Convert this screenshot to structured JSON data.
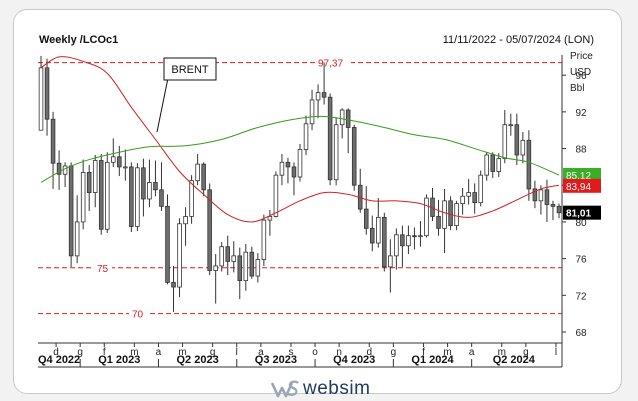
{
  "header": {
    "symbol": "Weekly /LCOc1",
    "date_range": "11/11/2022 - 05/07/2024 (LON)"
  },
  "logo": {
    "text": "websim",
    "icon": "websim-logo-icon"
  },
  "colors": {
    "candle_up": "#ffffff",
    "candle_down": "#6e6e6e",
    "candle_outline": "#333333",
    "ma_red": "#d42020",
    "ma_green": "#3a9a20",
    "level_line": "#d42020",
    "tag_green": "#3aae27",
    "tag_red": "#e01b1b",
    "tag_black": "#000000"
  },
  "chart_data": {
    "type": "candlestick",
    "title": "Weekly /LCOc1",
    "annotation": "BRENT",
    "y_axis": {
      "label_lines": [
        "Price",
        "USD",
        "Bbl"
      ],
      "ticks": [
        68,
        72,
        76,
        80,
        84,
        88,
        92,
        96
      ],
      "range": [
        66.8,
        98.2
      ]
    },
    "x_axis": {
      "month_labels": [
        "d",
        "g",
        "f",
        "m",
        "a",
        "m",
        "g",
        "l",
        "a",
        "s",
        "o",
        "n",
        "d",
        "g",
        "f",
        "m",
        "a",
        "m",
        "g",
        "l"
      ],
      "quarter_labels": [
        "Q4 2022",
        "Q1 2023",
        "Q2 2023",
        "Q3 2023",
        "Q4 2023",
        "Q1 2024",
        "Q2 2024"
      ],
      "weeks": 87
    },
    "levels": [
      {
        "value": 97.37,
        "label": "97,37"
      },
      {
        "value": 75,
        "label": "75"
      },
      {
        "value": 70,
        "label": "70"
      }
    ],
    "price_tags": [
      {
        "value": 85.12,
        "label": "85,12",
        "color": "green"
      },
      {
        "value": 83.94,
        "label": "83,94",
        "color": "red"
      },
      {
        "value": 81.01,
        "label": "81,01",
        "color": "black"
      }
    ],
    "moving_averages": [
      {
        "color": "red",
        "points": [
          [
            0,
            96.8
          ],
          [
            3,
            98.0
          ],
          [
            7,
            97.5
          ],
          [
            11,
            96.2
          ],
          [
            15,
            92.5
          ],
          [
            19,
            89.0
          ],
          [
            23,
            85.5
          ],
          [
            27,
            83.0
          ],
          [
            31,
            80.8
          ],
          [
            35,
            80.0
          ],
          [
            39,
            81.0
          ],
          [
            43,
            82.3
          ],
          [
            47,
            83.2
          ],
          [
            51,
            83.0
          ],
          [
            55,
            82.3
          ],
          [
            59,
            82.3
          ],
          [
            63,
            82.0
          ],
          [
            67,
            81.0
          ],
          [
            71,
            80.5
          ],
          [
            75,
            81.2
          ],
          [
            79,
            82.4
          ],
          [
            83,
            83.6
          ],
          [
            86,
            84.0
          ]
        ]
      },
      {
        "color": "green",
        "points": [
          [
            0,
            84.3
          ],
          [
            4,
            85.8
          ],
          [
            8,
            86.8
          ],
          [
            13,
            87.6
          ],
          [
            18,
            88.2
          ],
          [
            24,
            88.3
          ],
          [
            30,
            89.0
          ],
          [
            36,
            90.3
          ],
          [
            42,
            91.2
          ],
          [
            47,
            91.5
          ],
          [
            52,
            91.0
          ],
          [
            57,
            90.3
          ],
          [
            62,
            89.5
          ],
          [
            67,
            89.0
          ],
          [
            72,
            88.0
          ],
          [
            77,
            87.0
          ],
          [
            81,
            86.5
          ],
          [
            86,
            85.1
          ]
        ]
      }
    ],
    "ohlc": [
      [
        90.0,
        98.1,
        90.0,
        96.8
      ],
      [
        96.8,
        97.8,
        89.4,
        91.2
      ],
      [
        91.2,
        92.0,
        83.6,
        86.4
      ],
      [
        86.4,
        87.8,
        83.5,
        85.2
      ],
      [
        85.2,
        86.5,
        83.8,
        86.1
      ],
      [
        86.1,
        86.5,
        75.1,
        76.3
      ],
      [
        76.3,
        82.9,
        75.5,
        80.0
      ],
      [
        80.0,
        86.8,
        79.2,
        85.4
      ],
      [
        85.4,
        86.2,
        81.2,
        83.2
      ],
      [
        83.2,
        87.3,
        81.6,
        86.7
      ],
      [
        86.7,
        87.4,
        78.6,
        79.2
      ],
      [
        79.2,
        87.6,
        78.8,
        86.5
      ],
      [
        86.5,
        89.1,
        86.0,
        87.1
      ],
      [
        87.1,
        88.3,
        85.0,
        86.0
      ],
      [
        86.0,
        87.9,
        84.5,
        86.0
      ],
      [
        86.0,
        86.5,
        78.9,
        79.5
      ],
      [
        79.5,
        86.4,
        79.0,
        85.9
      ],
      [
        85.9,
        86.9,
        80.6,
        82.5
      ],
      [
        82.5,
        86.8,
        81.6,
        84.3
      ],
      [
        84.3,
        86.7,
        82.8,
        83.5
      ],
      [
        83.5,
        86.5,
        81.2,
        81.7
      ],
      [
        81.7,
        83.0,
        73.2,
        73.4
      ],
      [
        73.4,
        75.2,
        70.2,
        72.9
      ],
      [
        72.9,
        80.4,
        71.8,
        79.8
      ],
      [
        79.8,
        81.6,
        77.4,
        80.6
      ],
      [
        80.6,
        85.1,
        79.8,
        84.5
      ],
      [
        84.5,
        87.4,
        84.0,
        86.3
      ],
      [
        86.3,
        86.5,
        82.8,
        83.5
      ],
      [
        83.5,
        84.2,
        74.2,
        74.7
      ],
      [
        74.7,
        76.5,
        71.1,
        75.2
      ],
      [
        75.2,
        77.8,
        74.6,
        77.3
      ],
      [
        77.3,
        78.5,
        74.2,
        75.7
      ],
      [
        75.7,
        77.9,
        74.5,
        76.3
      ],
      [
        76.3,
        77.2,
        71.6,
        73.6
      ],
      [
        73.6,
        77.6,
        72.5,
        76.7
      ],
      [
        76.7,
        77.3,
        73.8,
        74.1
      ],
      [
        74.1,
        76.6,
        73.4,
        75.9
      ],
      [
        75.9,
        80.8,
        75.2,
        80.2
      ],
      [
        80.2,
        81.3,
        78.5,
        80.6
      ],
      [
        80.6,
        85.5,
        80.5,
        85.1
      ],
      [
        85.1,
        87.4,
        84.0,
        86.5
      ],
      [
        86.5,
        87.0,
        84.2,
        86.0
      ],
      [
        86.0,
        86.5,
        82.9,
        84.9
      ],
      [
        84.9,
        88.5,
        84.4,
        87.9
      ],
      [
        87.9,
        91.6,
        87.3,
        90.7
      ],
      [
        90.7,
        94.4,
        90.0,
        93.3
      ],
      [
        93.3,
        95.0,
        91.3,
        94.1
      ],
      [
        94.1,
        97.4,
        92.8,
        93.6
      ],
      [
        93.6,
        94.0,
        84.0,
        84.6
      ],
      [
        84.6,
        91.4,
        84.0,
        90.6
      ],
      [
        90.6,
        92.4,
        89.1,
        92.2
      ],
      [
        92.2,
        92.4,
        87.5,
        90.3
      ],
      [
        90.3,
        90.6,
        83.4,
        84.0
      ],
      [
        84.0,
        85.8,
        81.0,
        81.4
      ],
      [
        81.4,
        83.9,
        78.6,
        79.3
      ],
      [
        79.3,
        80.7,
        76.8,
        77.7
      ],
      [
        77.7,
        82.6,
        77.2,
        80.5
      ],
      [
        80.5,
        81.0,
        74.6,
        75.1
      ],
      [
        75.1,
        78.1,
        72.3,
        76.3
      ],
      [
        76.3,
        79.3,
        74.8,
        78.6
      ],
      [
        78.6,
        79.6,
        75.1,
        77.4
      ],
      [
        77.4,
        79.6,
        76.5,
        78.5
      ],
      [
        78.5,
        79.4,
        77.0,
        78.4
      ],
      [
        78.4,
        80.1,
        77.3,
        78.5
      ],
      [
        78.5,
        83.0,
        78.3,
        82.6
      ],
      [
        82.6,
        83.7,
        80.1,
        80.6
      ],
      [
        80.6,
        82.4,
        78.5,
        79.3
      ],
      [
        79.3,
        83.6,
        76.6,
        82.3
      ],
      [
        82.3,
        82.8,
        79.1,
        79.6
      ],
      [
        79.6,
        82.3,
        79.1,
        82.0
      ],
      [
        82.0,
        83.7,
        80.8,
        82.8
      ],
      [
        82.8,
        84.7,
        81.9,
        83.2
      ],
      [
        83.2,
        84.2,
        80.9,
        82.1
      ],
      [
        82.1,
        85.6,
        81.7,
        85.1
      ],
      [
        85.1,
        87.6,
        84.5,
        87.3
      ],
      [
        87.3,
        87.6,
        84.8,
        85.5
      ],
      [
        85.5,
        87.5,
        84.9,
        86.9
      ],
      [
        86.9,
        92.2,
        86.4,
        90.6
      ],
      [
        90.6,
        91.8,
        89.4,
        90.6
      ],
      [
        90.6,
        91.8,
        86.2,
        87.3
      ],
      [
        87.3,
        89.8,
        86.4,
        88.9
      ],
      [
        88.9,
        90.0,
        82.3,
        83.6
      ],
      [
        83.6,
        84.5,
        81.5,
        82.3
      ],
      [
        82.3,
        84.0,
        80.8,
        83.5
      ],
      [
        83.5,
        84.6,
        80.0,
        81.9
      ],
      [
        81.9,
        82.3,
        80.2,
        81.7
      ],
      [
        81.7,
        82.0,
        80.4,
        81.0
      ]
    ]
  }
}
